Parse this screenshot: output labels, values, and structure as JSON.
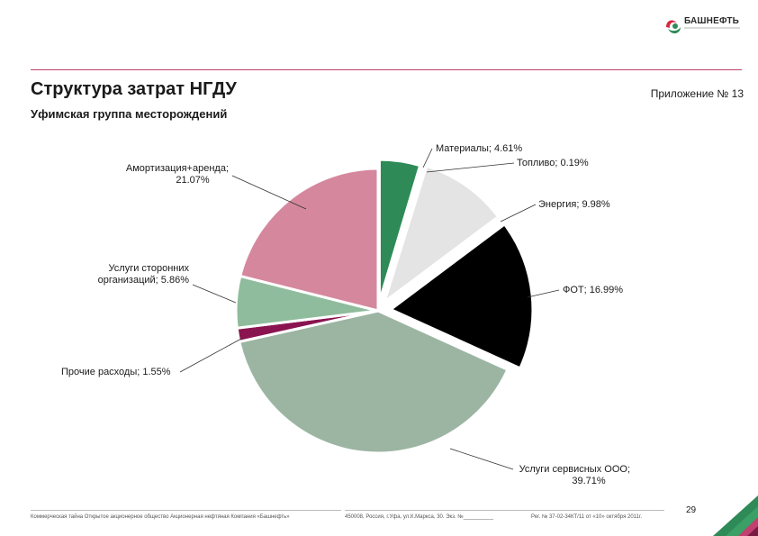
{
  "header": {
    "logo_name": "БАШНЕФТЬ",
    "logo_icon": "bashneft-logo-icon",
    "title": "Структура затрат НГДУ",
    "appendix": "Приложение № 13",
    "subtitle": "Уфимская группа месторождений"
  },
  "colors": {
    "accent_rule": "#c0406f",
    "brand_green": "#2e8b57"
  },
  "chart_data": {
    "type": "pie",
    "title": "",
    "slices": [
      {
        "name": "Материалы",
        "value": 4.61,
        "label": "Материалы; 4.61%",
        "color": "#2e8b57"
      },
      {
        "name": "Топливо",
        "value": 0.19,
        "label": "Топливо; 0.19%",
        "color": "#c8c8c8"
      },
      {
        "name": "Энергия",
        "value": 9.98,
        "label": "Энергия; 9.98%",
        "color": "#e4e4e4"
      },
      {
        "name": "ФОТ",
        "value": 16.99,
        "label": "ФОТ; 16.99%",
        "color": "#000000"
      },
      {
        "name": "Услуги сервисных ООО",
        "value": 39.71,
        "label": [
          "Услуги сервисных ООО;",
          "39.71%"
        ],
        "color": "#9cb5a3"
      },
      {
        "name": "Прочие расходы",
        "value": 1.55,
        "label": "Прочие расходы; 1.55%",
        "color": "#8a1450"
      },
      {
        "name": "Услуги сторонних организаций",
        "value": 5.86,
        "label": [
          "Услуги сторонних",
          "организаций; 5.86%"
        ],
        "color": "#8fbc9c"
      },
      {
        "name": "Амортизация+аренда",
        "value": 21.07,
        "label": [
          "Амортизация+аренда;",
          "21.07%"
        ],
        "color": "#d5879e"
      }
    ]
  },
  "footer": {
    "confidential": "Коммерческая тайна Открытое акционерное общество Акционерная нефтяная Компания «Башнефть»",
    "address": "450008, Россия, г.Уфа, ул.К.Маркса, 30. Экз. №__________",
    "reg": "Рег. № 37-02-34КТ/11 от «10» октября 2011г.",
    "page": "29"
  }
}
